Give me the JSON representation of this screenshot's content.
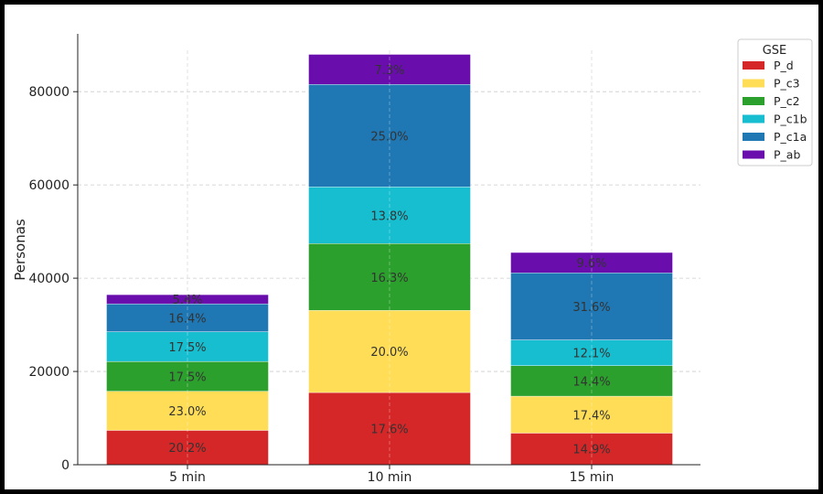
{
  "chart_data": {
    "type": "bar",
    "stacked": true,
    "title": "",
    "xlabel": "",
    "ylabel": "Personas",
    "categories": [
      "5 min",
      "10 min",
      "15 min"
    ],
    "ylim": [
      0,
      92400
    ],
    "yticks": [
      0,
      20000,
      40000,
      60000,
      80000
    ],
    "grid": true,
    "legend": {
      "title": "GSE",
      "placement": "outside-top-right"
    },
    "series": [
      {
        "name": "P_d",
        "color": "#d62728",
        "values": [
          7370,
          15490,
          6780
        ],
        "labels": [
          "20.2%",
          "17.6%",
          "14.9%"
        ]
      },
      {
        "name": "P_c3",
        "color": "#ffdd57",
        "values": [
          8390,
          17600,
          7920
        ],
        "labels": [
          "23.0%",
          "20.0%",
          "17.4%"
        ]
      },
      {
        "name": "P_c2",
        "color": "#2ca02c",
        "values": [
          6380,
          14340,
          6550
        ],
        "labels": [
          "17.5%",
          "16.3%",
          "14.4%"
        ]
      },
      {
        "name": "P_c1b",
        "color": "#17becf",
        "values": [
          6380,
          12140,
          5510
        ],
        "labels": [
          "17.5%",
          "13.8%",
          "12.1%"
        ]
      },
      {
        "name": "P_c1a",
        "color": "#1f77b4",
        "values": [
          5980,
          22000,
          14380
        ],
        "labels": [
          "16.4%",
          "25.0%",
          "31.6%"
        ]
      },
      {
        "name": "P_ab",
        "color": "#6a0dad",
        "values": [
          1970,
          6420,
          4370
        ],
        "labels": [
          "5.4%",
          "7.3%",
          "9.6%"
        ]
      }
    ]
  }
}
